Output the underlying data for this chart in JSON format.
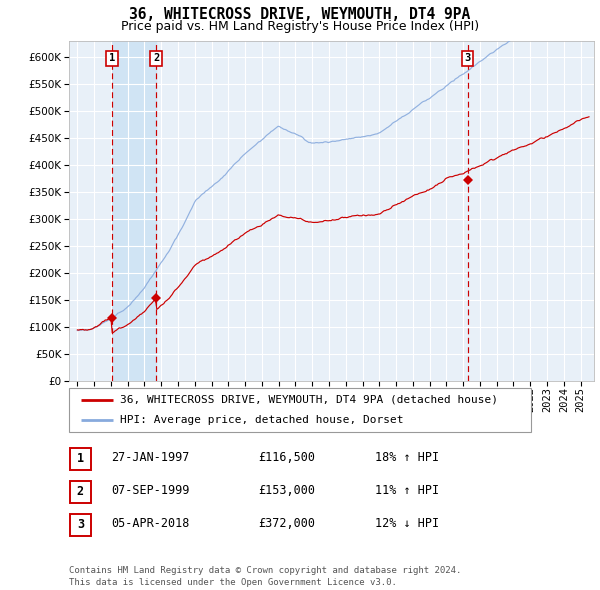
{
  "title": "36, WHITECROSS DRIVE, WEYMOUTH, DT4 9PA",
  "subtitle": "Price paid vs. HM Land Registry's House Price Index (HPI)",
  "ytick_values": [
    0,
    50000,
    100000,
    150000,
    200000,
    250000,
    300000,
    350000,
    400000,
    450000,
    500000,
    550000,
    600000
  ],
  "xlim": [
    1994.5,
    2025.8
  ],
  "ylim": [
    0,
    630000
  ],
  "purchase_dates": [
    1997.07,
    1999.69,
    2018.26
  ],
  "purchase_prices": [
    116500,
    153000,
    372000
  ],
  "purchase_labels": [
    "1",
    "2",
    "3"
  ],
  "vline_color": "#cc0000",
  "marker_color": "#cc0000",
  "hpi_line_color": "#88aadd",
  "price_line_color": "#cc0000",
  "plot_bg": "#e8f0f8",
  "span_bg": "#d0e4f4",
  "grid_color": "#ffffff",
  "legend_entries": [
    "36, WHITECROSS DRIVE, WEYMOUTH, DT4 9PA (detached house)",
    "HPI: Average price, detached house, Dorset"
  ],
  "table_rows": [
    {
      "num": "1",
      "date": "27-JAN-1997",
      "price": "£116,500",
      "hpi": "18% ↑ HPI"
    },
    {
      "num": "2",
      "date": "07-SEP-1999",
      "price": "£153,000",
      "hpi": "11% ↑ HPI"
    },
    {
      "num": "3",
      "date": "05-APR-2018",
      "price": "£372,000",
      "hpi": "12% ↓ HPI"
    }
  ],
  "footer": "Contains HM Land Registry data © Crown copyright and database right 2024.\nThis data is licensed under the Open Government Licence v3.0.",
  "title_fontsize": 10.5,
  "subtitle_fontsize": 9,
  "tick_fontsize": 7.5,
  "legend_fontsize": 8,
  "table_fontsize": 8.5,
  "footer_fontsize": 6.5
}
